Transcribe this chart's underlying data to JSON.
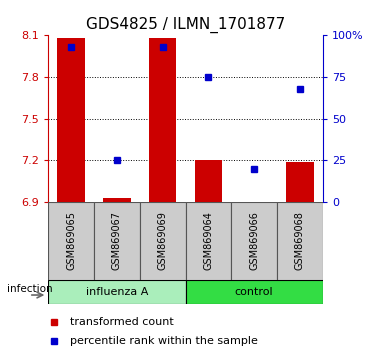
{
  "title": "GDS4825 / ILMN_1701877",
  "categories": [
    "GSM869065",
    "GSM869067",
    "GSM869069",
    "GSM869064",
    "GSM869066",
    "GSM869068"
  ],
  "bar_values": [
    8.08,
    6.93,
    8.08,
    7.2,
    6.9,
    7.19
  ],
  "percentile_values": [
    93,
    25,
    93,
    75,
    20,
    68
  ],
  "ylim_left": [
    6.9,
    8.1
  ],
  "ylim_right": [
    0,
    100
  ],
  "yticks_left": [
    6.9,
    7.2,
    7.5,
    7.8,
    8.1
  ],
  "yticks_right": [
    0,
    25,
    50,
    75,
    100
  ],
  "ytick_labels_right": [
    "0",
    "25",
    "50",
    "75",
    "100%"
  ],
  "bar_color": "#cc0000",
  "marker_color": "#0000cc",
  "bar_bottom": 6.9,
  "groups": [
    {
      "label": "influenza A",
      "indices": [
        0,
        1,
        2
      ],
      "color": "#aaeebb"
    },
    {
      "label": "control",
      "indices": [
        3,
        4,
        5
      ],
      "color": "#33dd44"
    }
  ],
  "infection_label": "infection",
  "legend_items": [
    {
      "label": "transformed count",
      "color": "#cc0000"
    },
    {
      "label": "percentile rank within the sample",
      "color": "#0000cc"
    }
  ],
  "background_color": "#ffffff",
  "tick_label_color_left": "#cc0000",
  "tick_label_color_right": "#0000cc",
  "title_fontsize": 11,
  "axis_fontsize": 8,
  "legend_fontsize": 8,
  "sample_box_color": "#cccccc",
  "sample_box_edge": "#555555"
}
